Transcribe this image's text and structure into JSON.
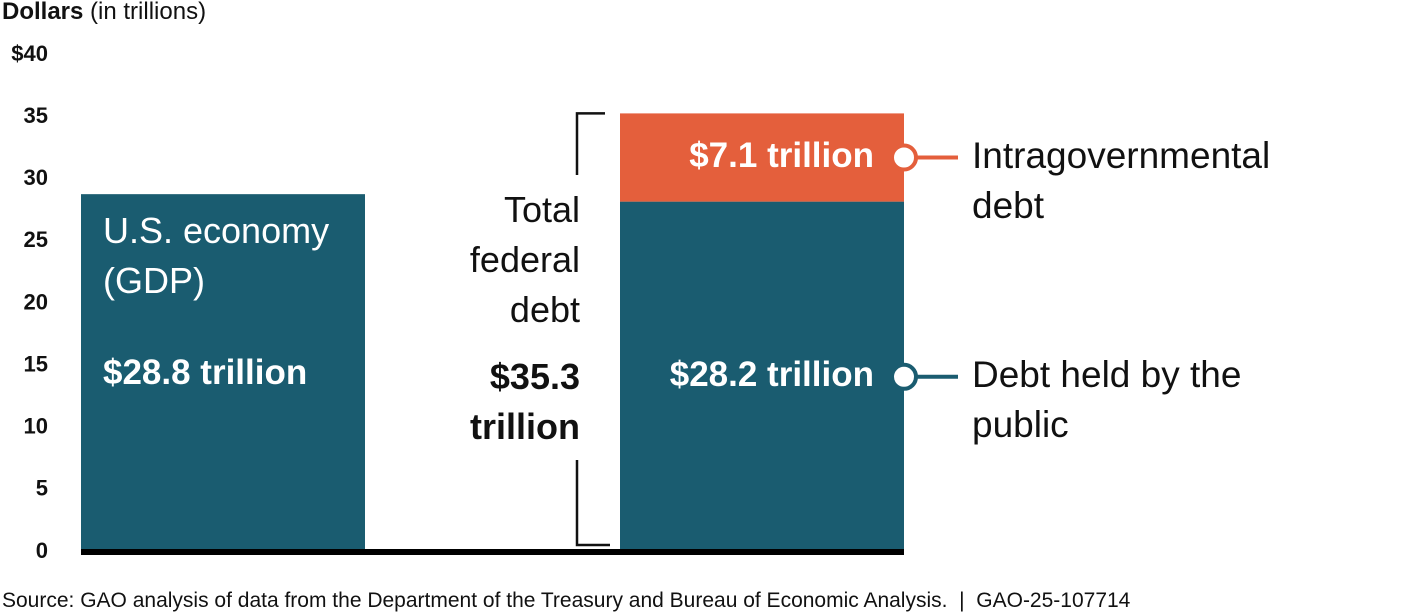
{
  "chart_data": {
    "type": "bar",
    "y_axis_title": "Dollars",
    "y_axis_unit": "(in trillions)",
    "ylim": [
      0,
      40
    ],
    "yticks": [
      0,
      5,
      10,
      15,
      20,
      25,
      30,
      35,
      {
        "value": 40,
        "label": "$40"
      }
    ],
    "categories": [
      null,
      null
    ],
    "stacked": true,
    "series": [
      {
        "name": "U.S. economy (GDP)",
        "color": "#1a5c70",
        "values": [
          28.8,
          null
        ],
        "value_labels": [
          "$28.8 trillion",
          null
        ]
      },
      {
        "name": "Debt held by the public",
        "color": "#1a5c70",
        "values": [
          null,
          28.2
        ],
        "value_labels": [
          null,
          "$28.2 trillion"
        ]
      },
      {
        "name": "Intragovernmental debt",
        "color": "#e45f3c",
        "values": [
          null,
          7.1
        ],
        "value_labels": [
          null,
          "$7.1 trillion"
        ]
      }
    ],
    "total_annotation": {
      "label": "Total federal debt",
      "value": 35.3,
      "value_label": "$35.3 trillion"
    },
    "source": "Source: GAO analysis of data from the Department of the Treasury and Bureau of Economic Analysis.  |  GAO-25-107714"
  }
}
